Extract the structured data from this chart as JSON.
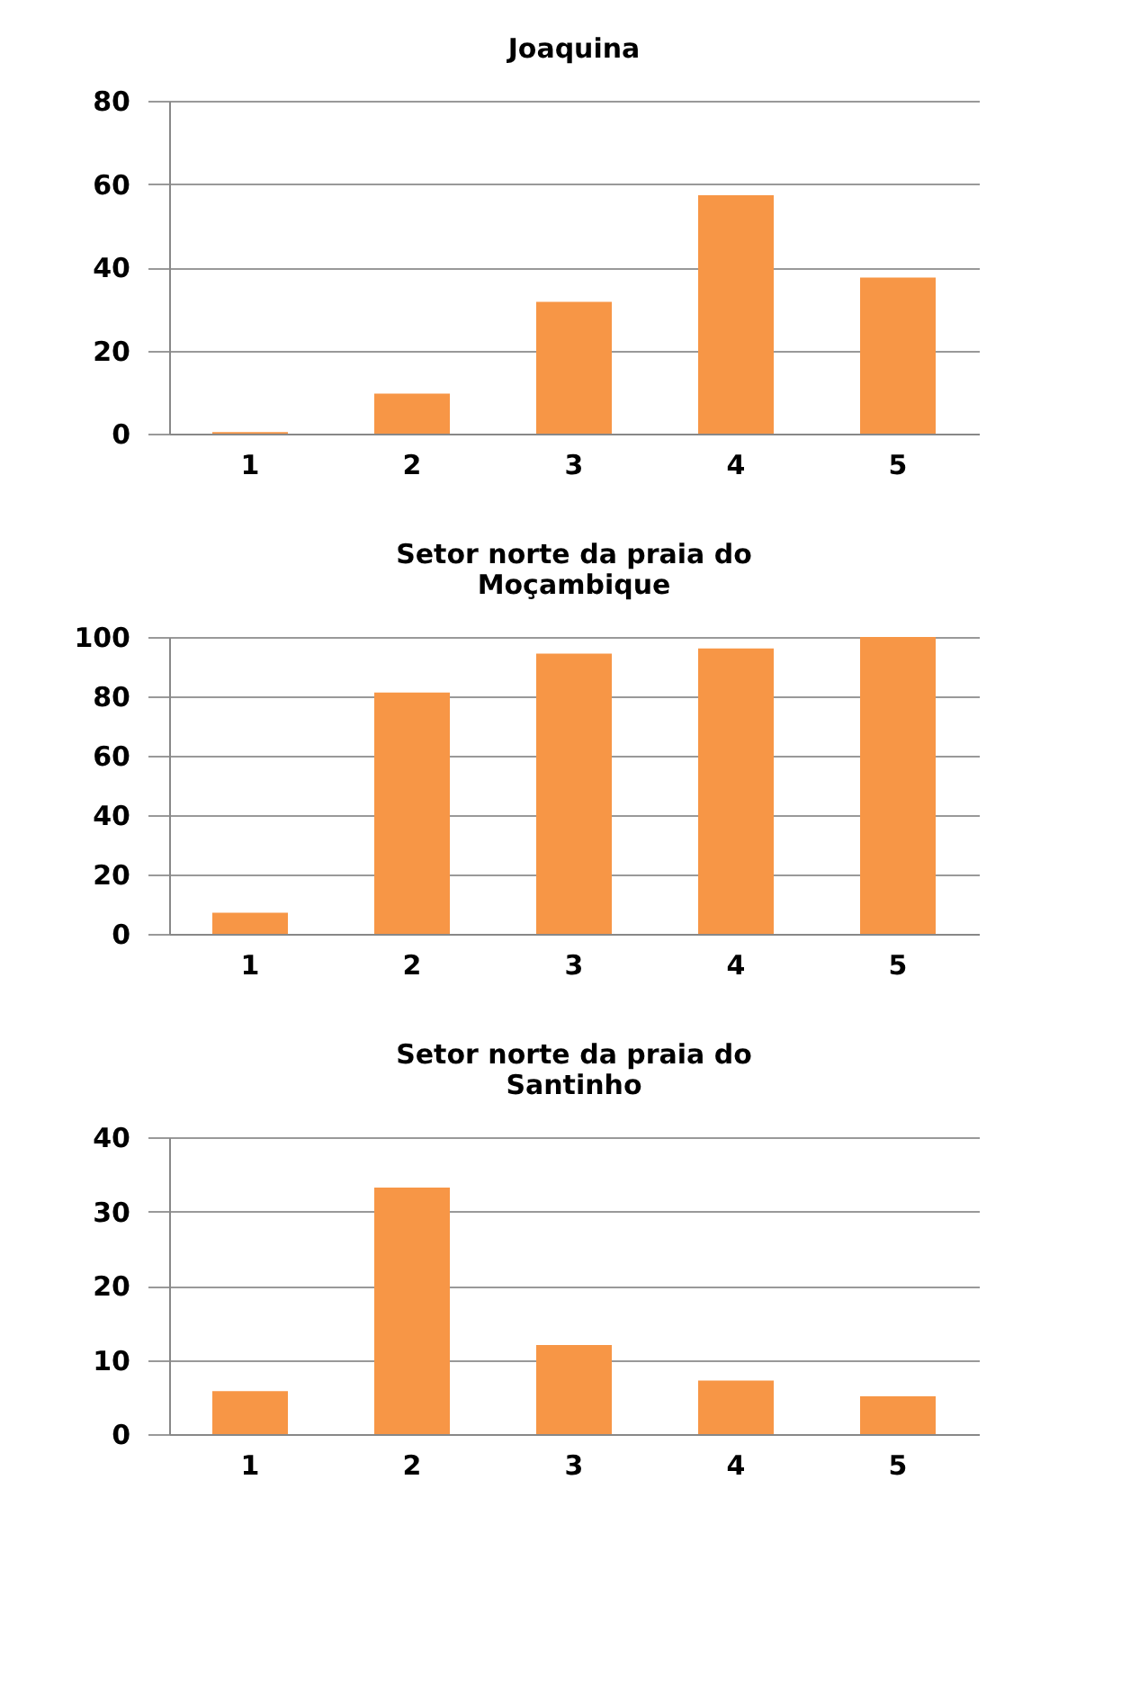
{
  "chart_data": [
    {
      "type": "bar",
      "title": "Joaquina",
      "categories": [
        "1",
        "2",
        "3",
        "4",
        "5"
      ],
      "values": [
        0.4,
        9.6,
        31.7,
        57.3,
        37.5
      ],
      "color": "#f79646",
      "ylim": [
        0,
        80
      ],
      "yticks": [
        0,
        20,
        40,
        60,
        80
      ],
      "grid": "y"
    },
    {
      "type": "bar",
      "title": "Setor norte da praia do Moçambique",
      "categories": [
        "1",
        "2",
        "3",
        "4",
        "5"
      ],
      "values": [
        7.1,
        81.3,
        94.4,
        96.1,
        100
      ],
      "color": "#f79646",
      "ylim": [
        0,
        100
      ],
      "yticks": [
        0,
        20,
        40,
        60,
        80,
        100
      ],
      "grid": "y"
    },
    {
      "type": "bar",
      "title": "Setor norte da praia do Santinho",
      "categories": [
        "1",
        "2",
        "3",
        "4",
        "5"
      ],
      "values": [
        5.8,
        33.2,
        12.0,
        7.2,
        5.1
      ],
      "color": "#f79646",
      "ylim": [
        0,
        40
      ],
      "yticks": [
        0,
        10,
        20,
        30,
        40
      ],
      "grid": "y"
    }
  ]
}
